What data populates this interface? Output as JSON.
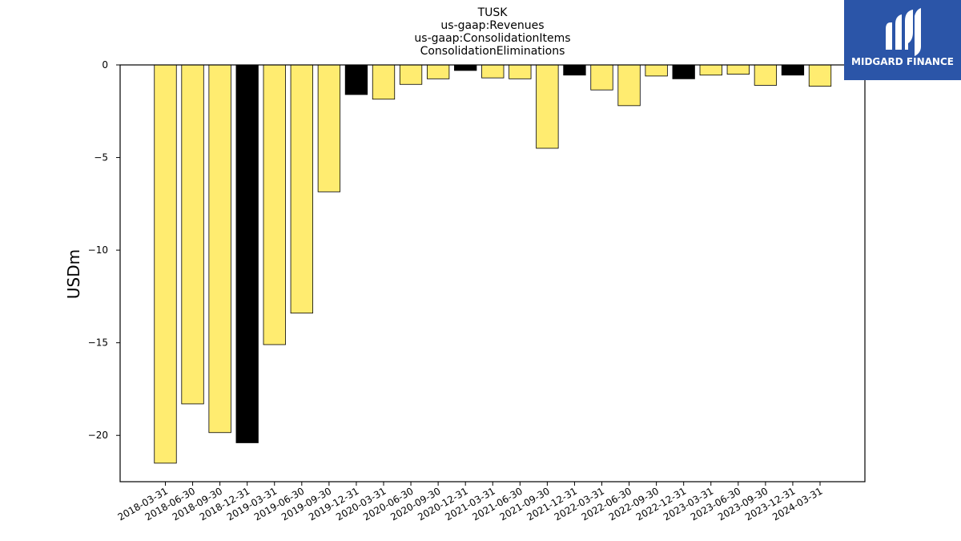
{
  "chart_data": {
    "type": "bar",
    "title_lines": [
      "TUSK",
      "us-gaap:Revenues",
      "us-gaap:ConsolidationItems",
      "ConsolidationEliminations"
    ],
    "ylabel": "USDm",
    "xlabel": "",
    "ylim": [
      -22.5,
      0
    ],
    "yticks": [
      0,
      -5,
      -10,
      -15,
      -20
    ],
    "grid": false,
    "categories": [
      "2018-03-31",
      "2018-06-30",
      "2018-09-30",
      "2018-12-31",
      "2019-03-31",
      "2019-06-30",
      "2019-09-30",
      "2019-12-31",
      "2020-03-31",
      "2020-06-30",
      "2020-09-30",
      "2020-12-31",
      "2021-03-31",
      "2021-06-30",
      "2021-09-30",
      "2021-12-31",
      "2022-03-31",
      "2022-06-30",
      "2022-09-30",
      "2022-12-31",
      "2023-03-31",
      "2023-06-30",
      "2023-09-30",
      "2023-12-31",
      "2024-03-31"
    ],
    "values": [
      -21.5,
      -18.3,
      -19.85,
      -20.4,
      -15.1,
      -13.4,
      -6.85,
      -1.6,
      -1.85,
      -1.05,
      -0.75,
      -0.3,
      -0.7,
      -0.75,
      -4.5,
      -0.55,
      -1.35,
      -2.2,
      -0.6,
      -0.75,
      -0.55,
      -0.5,
      -1.1,
      -0.55,
      -1.15
    ],
    "bar_colors": [
      "#FFEC70",
      "#FFEC70",
      "#FFEC70",
      "#000000",
      "#FFEC70",
      "#FFEC70",
      "#FFEC70",
      "#000000",
      "#FFEC70",
      "#FFEC70",
      "#FFEC70",
      "#000000",
      "#FFEC70",
      "#FFEC70",
      "#FFEC70",
      "#000000",
      "#FFEC70",
      "#FFEC70",
      "#FFEC70",
      "#000000",
      "#FFEC70",
      "#FFEC70",
      "#FFEC70",
      "#000000",
      "#FFEC70"
    ]
  },
  "logo": {
    "text": "MIDGARD FINANCE",
    "background": "#2B55A8"
  }
}
